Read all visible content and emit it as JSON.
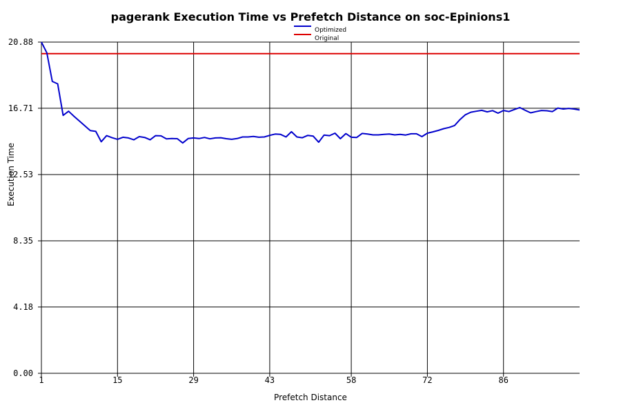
{
  "chart_data": {
    "type": "line",
    "title": "pagerank Execution Time vs Prefetch Distance on soc-Epinions1",
    "xlabel": "Prefetch Distance",
    "ylabel": "Execution Time",
    "x_tick_labels": [
      "1",
      "15",
      "29",
      "43",
      "58",
      "72",
      "86"
    ],
    "y_tick_labels": [
      "0.00",
      "4.18",
      "8.35",
      "12.53",
      "16.71",
      "20.88"
    ],
    "xlim": [
      1,
      100
    ],
    "ylim": [
      0,
      20.88
    ],
    "grid": true,
    "legend_position": "top-center",
    "series": [
      {
        "name": "Optimized",
        "color": "#0000cc",
        "x": [
          1,
          2,
          3,
          4,
          5,
          6,
          7,
          8,
          9,
          10,
          11,
          12,
          13,
          14,
          15,
          16,
          17,
          18,
          19,
          20,
          21,
          22,
          23,
          24,
          25,
          26,
          27,
          28,
          29,
          30,
          31,
          32,
          33,
          34,
          35,
          36,
          37,
          38,
          39,
          40,
          41,
          42,
          43,
          44,
          45,
          46,
          47,
          48,
          49,
          50,
          51,
          52,
          53,
          54,
          55,
          56,
          57,
          58,
          59,
          60,
          61,
          62,
          63,
          64,
          65,
          66,
          67,
          68,
          69,
          70,
          71,
          72,
          73,
          74,
          75,
          76,
          77,
          78,
          79,
          80,
          81,
          82,
          83,
          84,
          85,
          86,
          87,
          88,
          89,
          90,
          91,
          92,
          93,
          94,
          95,
          96,
          97,
          98,
          99,
          100
        ],
        "y": [
          20.88,
          20.2,
          18.4,
          18.25,
          16.26,
          16.52,
          16.2,
          15.9,
          15.6,
          15.3,
          15.25,
          14.6,
          14.98,
          14.85,
          14.75,
          14.88,
          14.84,
          14.72,
          14.92,
          14.87,
          14.72,
          14.98,
          14.97,
          14.78,
          14.8,
          14.79,
          14.52,
          14.8,
          14.84,
          14.8,
          14.87,
          14.78,
          14.84,
          14.85,
          14.79,
          14.75,
          14.8,
          14.9,
          14.9,
          14.93,
          14.88,
          14.9,
          15.0,
          15.08,
          15.06,
          14.9,
          15.23,
          14.9,
          14.85,
          15.0,
          14.95,
          14.57,
          15.02,
          14.98,
          15.14,
          14.79,
          15.11,
          14.88,
          14.87,
          15.12,
          15.08,
          15.03,
          15.03,
          15.06,
          15.08,
          15.03,
          15.06,
          15.02,
          15.1,
          15.1,
          14.92,
          15.14,
          15.22,
          15.31,
          15.42,
          15.5,
          15.62,
          16.0,
          16.3,
          16.46,
          16.52,
          16.58,
          16.48,
          16.56,
          16.4,
          16.57,
          16.5,
          16.63,
          16.75,
          16.58,
          16.42,
          16.5,
          16.57,
          16.55,
          16.5,
          16.72,
          16.66,
          16.7,
          16.66,
          16.6
        ]
      },
      {
        "name": "Original",
        "color": "#dd0000",
        "x": [
          1,
          100
        ],
        "y": [
          20.15,
          20.15
        ]
      }
    ]
  }
}
